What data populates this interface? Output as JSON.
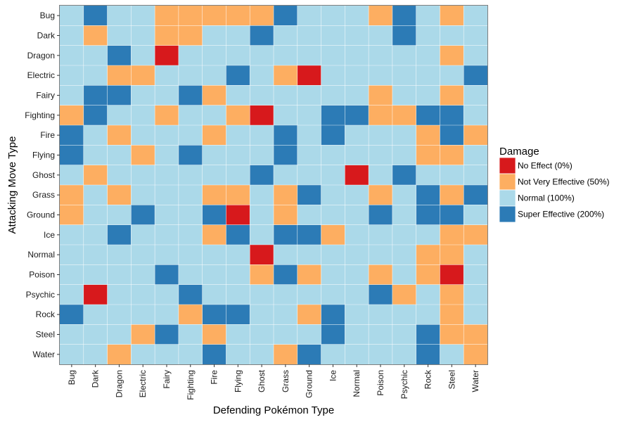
{
  "chart_data": {
    "type": "heatmap",
    "xlabel": "Defending Pokémon Type",
    "ylabel": "Attacking Move Type",
    "x_categories": [
      "Bug",
      "Dark",
      "Dragon",
      "Electric",
      "Fairy",
      "Fighting",
      "Fire",
      "Flying",
      "Ghost",
      "Grass",
      "Ground",
      "Ice",
      "Normal",
      "Poison",
      "Psychic",
      "Rock",
      "Steel",
      "Water"
    ],
    "y_categories": [
      "Bug",
      "Dark",
      "Dragon",
      "Electric",
      "Fairy",
      "Fighting",
      "Fire",
      "Flying",
      "Ghost",
      "Grass",
      "Ground",
      "Ice",
      "Normal",
      "Poison",
      "Psychic",
      "Rock",
      "Steel",
      "Water"
    ],
    "values": [
      [
        1,
        2,
        1,
        1,
        0.5,
        0.5,
        0.5,
        0.5,
        0.5,
        2,
        1,
        1,
        1,
        0.5,
        2,
        1,
        0.5,
        1
      ],
      [
        1,
        0.5,
        1,
        1,
        0.5,
        0.5,
        1,
        1,
        2,
        1,
        1,
        1,
        1,
        1,
        2,
        1,
        1,
        1
      ],
      [
        1,
        1,
        2,
        1,
        0,
        1,
        1,
        1,
        1,
        1,
        1,
        1,
        1,
        1,
        1,
        1,
        0.5,
        1
      ],
      [
        1,
        1,
        0.5,
        0.5,
        1,
        1,
        1,
        2,
        1,
        0.5,
        0,
        1,
        1,
        1,
        1,
        1,
        1,
        2
      ],
      [
        1,
        2,
        2,
        1,
        1,
        2,
        0.5,
        1,
        1,
        1,
        1,
        1,
        1,
        0.5,
        1,
        1,
        0.5,
        1
      ],
      [
        0.5,
        2,
        1,
        1,
        0.5,
        1,
        1,
        0.5,
        0,
        1,
        1,
        2,
        2,
        0.5,
        0.5,
        2,
        2,
        1
      ],
      [
        2,
        1,
        0.5,
        1,
        1,
        1,
        0.5,
        1,
        1,
        2,
        1,
        2,
        1,
        1,
        1,
        0.5,
        2,
        0.5
      ],
      [
        2,
        1,
        1,
        0.5,
        1,
        2,
        1,
        1,
        1,
        2,
        1,
        1,
        1,
        1,
        1,
        0.5,
        0.5,
        1
      ],
      [
        1,
        0.5,
        1,
        1,
        1,
        1,
        1,
        1,
        2,
        1,
        1,
        1,
        0,
        1,
        2,
        1,
        1,
        1
      ],
      [
        0.5,
        1,
        0.5,
        1,
        1,
        1,
        0.5,
        0.5,
        1,
        0.5,
        2,
        1,
        1,
        0.5,
        1,
        2,
        0.5,
        2
      ],
      [
        0.5,
        1,
        1,
        2,
        1,
        1,
        2,
        0,
        1,
        0.5,
        1,
        1,
        1,
        2,
        1,
        2,
        2,
        1
      ],
      [
        1,
        1,
        2,
        1,
        1,
        1,
        0.5,
        2,
        1,
        2,
        2,
        0.5,
        1,
        1,
        1,
        1,
        0.5,
        0.5
      ],
      [
        1,
        1,
        1,
        1,
        1,
        1,
        1,
        1,
        0,
        1,
        1,
        1,
        1,
        1,
        1,
        0.5,
        0.5,
        1
      ],
      [
        1,
        1,
        1,
        1,
        2,
        1,
        1,
        1,
        0.5,
        2,
        0.5,
        1,
        1,
        0.5,
        1,
        0.5,
        0,
        1
      ],
      [
        1,
        0,
        1,
        1,
        1,
        2,
        1,
        1,
        1,
        1,
        1,
        1,
        1,
        2,
        0.5,
        1,
        0.5,
        1
      ],
      [
        2,
        1,
        1,
        1,
        1,
        0.5,
        2,
        2,
        1,
        1,
        0.5,
        2,
        1,
        1,
        1,
        1,
        0.5,
        1
      ],
      [
        1,
        1,
        1,
        0.5,
        2,
        1,
        0.5,
        1,
        1,
        1,
        1,
        2,
        1,
        1,
        1,
        2,
        0.5,
        0.5
      ],
      [
        1,
        1,
        0.5,
        1,
        1,
        1,
        2,
        1,
        1,
        0.5,
        2,
        1,
        1,
        1,
        1,
        2,
        1,
        0.5
      ]
    ],
    "legend_title": "Damage",
    "legend": [
      {
        "value": 0,
        "label": "No Effect (0%)",
        "color": "#d7191c"
      },
      {
        "value": 0.5,
        "label": "Not Very Effective (50%)",
        "color": "#fdae61"
      },
      {
        "value": 1,
        "label": "Normal (100%)",
        "color": "#abd9e9"
      },
      {
        "value": 2,
        "label": "Super Effective (200%)",
        "color": "#2c7bb6"
      }
    ],
    "legend_position": "right",
    "grid": true
  }
}
